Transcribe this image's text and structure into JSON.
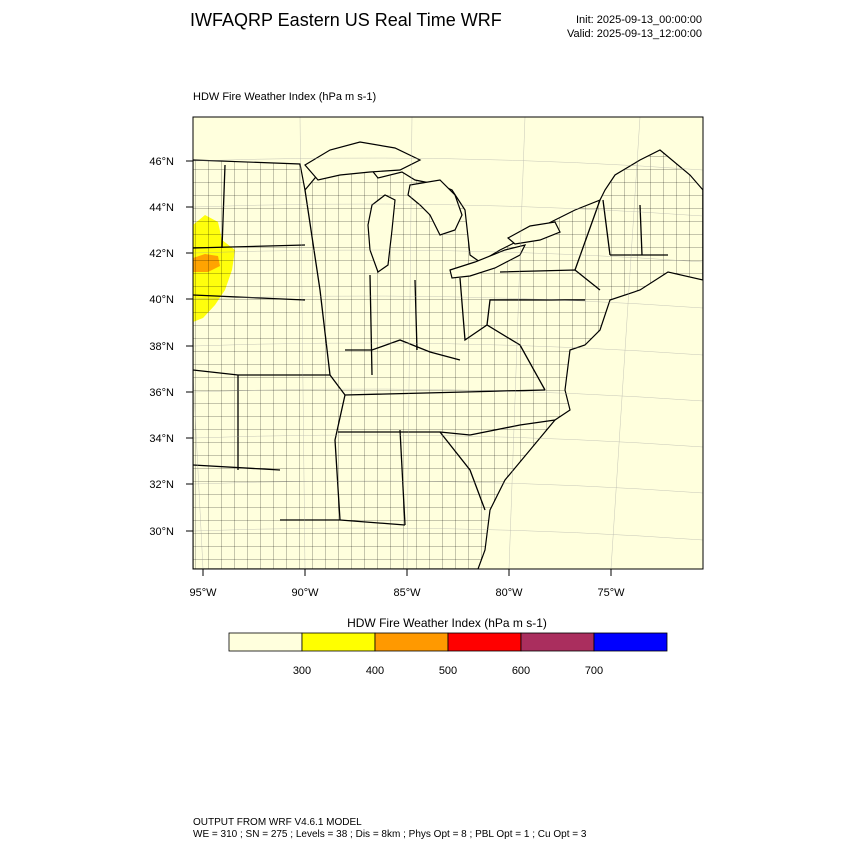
{
  "header": {
    "title": "IWFAQRP Eastern US Real Time WRF",
    "init": "Init: 2025-09-13_00:00:00",
    "valid": "Valid: 2025-09-13_12:00:00"
  },
  "map": {
    "subtitle": "HDW Fire Weather Index   (hPa m s-1)",
    "lat_labels": [
      "46°N",
      "44°N",
      "42°N",
      "40°N",
      "38°N",
      "36°N",
      "34°N",
      "32°N",
      "30°N"
    ],
    "lon_labels": [
      "95°W",
      "90°W",
      "85°W",
      "80°W",
      "75°W"
    ],
    "colors": {
      "land": "#ffffdd",
      "yellow": "#ffff00",
      "orange": "#ff9900",
      "border": "#000000"
    }
  },
  "colorbar": {
    "title": "HDW Fire Weather Index (hPa m s-1)",
    "labels": [
      "300",
      "400",
      "500",
      "600",
      "700"
    ],
    "colors": [
      "#ffffdd",
      "#ffff00",
      "#ff9900",
      "#ff0000",
      "#aa2e5e",
      "#0000ff"
    ]
  },
  "footer": {
    "line1": "OUTPUT FROM WRF V4.6.1 MODEL",
    "line2": "WE = 310 ; SN = 275 ; Levels = 38 ; Dis = 8km ; Phys Opt = 8 ; PBL Opt = 1 ; Cu Opt = 3"
  }
}
